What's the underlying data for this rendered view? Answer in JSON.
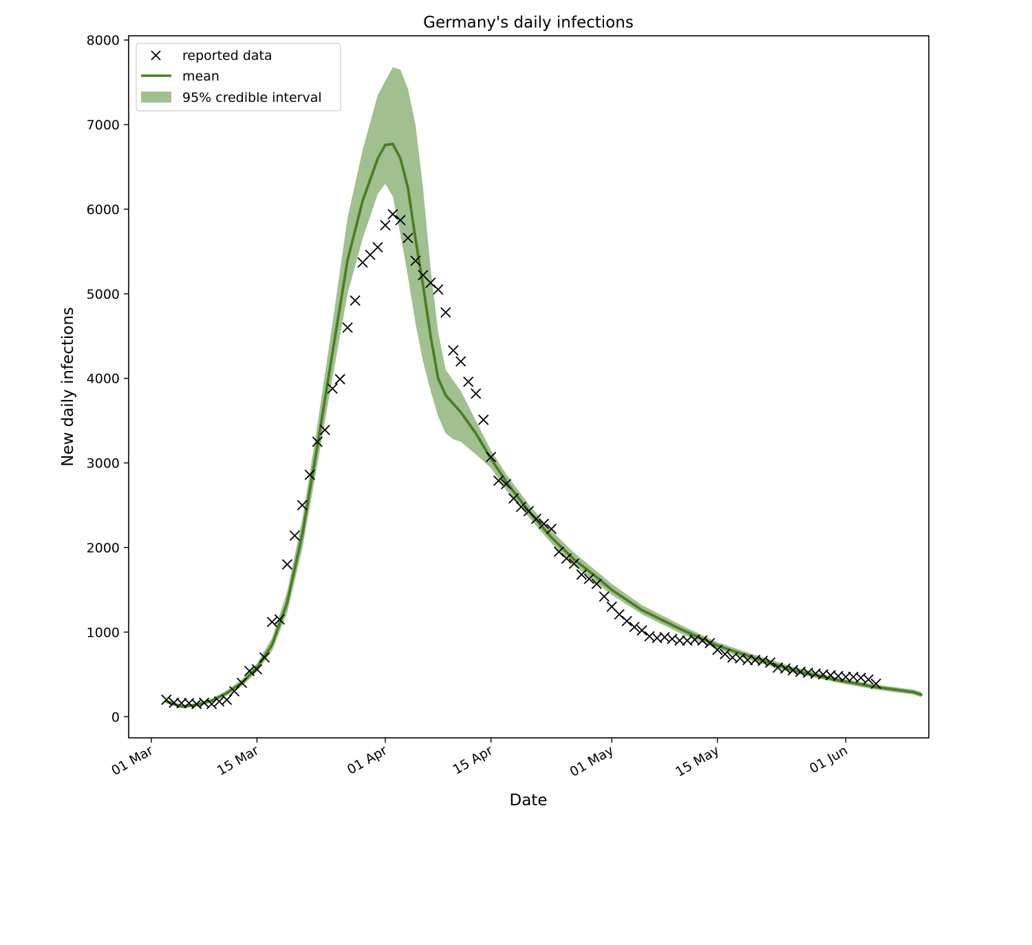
{
  "chart_data": {
    "type": "line",
    "title": "Germany's daily infections",
    "xlabel": "Date",
    "ylabel": "New daily infections",
    "xlim": [
      "2020-02-27",
      "2020-06-12"
    ],
    "ylim": [
      -250,
      8050
    ],
    "x_ticks": [
      {
        "date": "2020-03-01",
        "label": "01 Mar"
      },
      {
        "date": "2020-03-15",
        "label": "15 Mar"
      },
      {
        "date": "2020-04-01",
        "label": "01 Apr"
      },
      {
        "date": "2020-04-15",
        "label": "15 Apr"
      },
      {
        "date": "2020-05-01",
        "label": "01 May"
      },
      {
        "date": "2020-05-15",
        "label": "15 May"
      },
      {
        "date": "2020-06-01",
        "label": "01 Jun"
      }
    ],
    "y_ticks": [
      0,
      1000,
      2000,
      3000,
      4000,
      5000,
      6000,
      7000,
      8000
    ],
    "grid": false,
    "legend_position": "top-left",
    "colors": {
      "mean": "#4a7f22",
      "interval": "#a0c090",
      "reported": "#000000"
    },
    "legend": [
      {
        "label": "reported data",
        "marker": "x"
      },
      {
        "label": "mean",
        "marker": "line"
      },
      {
        "label": "95% credible interval",
        "marker": "patch"
      }
    ],
    "reported_data": [
      [
        "2020-03-03",
        200
      ],
      [
        "2020-03-04",
        165
      ],
      [
        "2020-03-05",
        160
      ],
      [
        "2020-03-06",
        160
      ],
      [
        "2020-03-07",
        150
      ],
      [
        "2020-03-08",
        165
      ],
      [
        "2020-03-09",
        150
      ],
      [
        "2020-03-10",
        180
      ],
      [
        "2020-03-11",
        200
      ],
      [
        "2020-03-12",
        300
      ],
      [
        "2020-03-13",
        400
      ],
      [
        "2020-03-14",
        540
      ],
      [
        "2020-03-15",
        560
      ],
      [
        "2020-03-16",
        700
      ],
      [
        "2020-03-17",
        1120
      ],
      [
        "2020-03-18",
        1150
      ],
      [
        "2020-03-19",
        1800
      ],
      [
        "2020-03-20",
        2140
      ],
      [
        "2020-03-21",
        2500
      ],
      [
        "2020-03-22",
        2860
      ],
      [
        "2020-03-23",
        3250
      ],
      [
        "2020-03-24",
        3390
      ],
      [
        "2020-03-25",
        3880
      ],
      [
        "2020-03-26",
        3990
      ],
      [
        "2020-03-27",
        4600
      ],
      [
        "2020-03-28",
        4920
      ],
      [
        "2020-03-29",
        5370
      ],
      [
        "2020-03-30",
        5460
      ],
      [
        "2020-03-31",
        5550
      ],
      [
        "2020-04-01",
        5810
      ],
      [
        "2020-04-02",
        5940
      ],
      [
        "2020-04-03",
        5870
      ],
      [
        "2020-04-04",
        5660
      ],
      [
        "2020-04-05",
        5390
      ],
      [
        "2020-04-06",
        5220
      ],
      [
        "2020-04-07",
        5130
      ],
      [
        "2020-04-08",
        5050
      ],
      [
        "2020-04-09",
        4780
      ],
      [
        "2020-04-10",
        4330
      ],
      [
        "2020-04-11",
        4200
      ],
      [
        "2020-04-12",
        3960
      ],
      [
        "2020-04-13",
        3820
      ],
      [
        "2020-04-14",
        3510
      ],
      [
        "2020-04-15",
        3070
      ],
      [
        "2020-04-16",
        2790
      ],
      [
        "2020-04-17",
        2750
      ],
      [
        "2020-04-18",
        2580
      ],
      [
        "2020-04-19",
        2480
      ],
      [
        "2020-04-20",
        2430
      ],
      [
        "2020-04-21",
        2340
      ],
      [
        "2020-04-22",
        2280
      ],
      [
        "2020-04-23",
        2220
      ],
      [
        "2020-04-24",
        1950
      ],
      [
        "2020-04-25",
        1870
      ],
      [
        "2020-04-26",
        1810
      ],
      [
        "2020-04-27",
        1680
      ],
      [
        "2020-04-28",
        1630
      ],
      [
        "2020-04-29",
        1570
      ],
      [
        "2020-04-30",
        1420
      ],
      [
        "2020-05-01",
        1300
      ],
      [
        "2020-05-02",
        1210
      ],
      [
        "2020-05-03",
        1130
      ],
      [
        "2020-05-04",
        1060
      ],
      [
        "2020-05-05",
        1020
      ],
      [
        "2020-05-06",
        950
      ],
      [
        "2020-05-07",
        930
      ],
      [
        "2020-05-08",
        940
      ],
      [
        "2020-05-09",
        920
      ],
      [
        "2020-05-10",
        900
      ],
      [
        "2020-05-11",
        900
      ],
      [
        "2020-05-12",
        910
      ],
      [
        "2020-05-13",
        900
      ],
      [
        "2020-05-14",
        870
      ],
      [
        "2020-05-15",
        790
      ],
      [
        "2020-05-16",
        740
      ],
      [
        "2020-05-17",
        700
      ],
      [
        "2020-05-18",
        690
      ],
      [
        "2020-05-19",
        670
      ],
      [
        "2020-05-20",
        670
      ],
      [
        "2020-05-21",
        660
      ],
      [
        "2020-05-22",
        640
      ],
      [
        "2020-05-23",
        580
      ],
      [
        "2020-05-24",
        570
      ],
      [
        "2020-05-25",
        550
      ],
      [
        "2020-05-26",
        530
      ],
      [
        "2020-05-27",
        520
      ],
      [
        "2020-05-28",
        510
      ],
      [
        "2020-05-29",
        500
      ],
      [
        "2020-05-30",
        490
      ],
      [
        "2020-05-31",
        480
      ],
      [
        "2020-06-01",
        470
      ],
      [
        "2020-06-02",
        470
      ],
      [
        "2020-06-03",
        460
      ],
      [
        "2020-06-04",
        440
      ],
      [
        "2020-06-05",
        390
      ]
    ],
    "mean": [
      [
        "2020-03-03",
        180
      ],
      [
        "2020-03-05",
        120
      ],
      [
        "2020-03-07",
        140
      ],
      [
        "2020-03-09",
        190
      ],
      [
        "2020-03-11",
        280
      ],
      [
        "2020-03-13",
        400
      ],
      [
        "2020-03-15",
        580
      ],
      [
        "2020-03-17",
        850
      ],
      [
        "2020-03-19",
        1350
      ],
      [
        "2020-03-21",
        2150
      ],
      [
        "2020-03-23",
        3200
      ],
      [
        "2020-03-25",
        4300
      ],
      [
        "2020-03-27",
        5400
      ],
      [
        "2020-03-29",
        6100
      ],
      [
        "2020-03-31",
        6600
      ],
      [
        "2020-04-01",
        6760
      ],
      [
        "2020-04-02",
        6770
      ],
      [
        "2020-04-03",
        6600
      ],
      [
        "2020-04-04",
        6250
      ],
      [
        "2020-04-05",
        5650
      ],
      [
        "2020-04-06",
        5100
      ],
      [
        "2020-04-07",
        4500
      ],
      [
        "2020-04-08",
        4000
      ],
      [
        "2020-04-09",
        3800
      ],
      [
        "2020-04-11",
        3600
      ],
      [
        "2020-04-13",
        3350
      ],
      [
        "2020-04-15",
        3050
      ],
      [
        "2020-04-17",
        2780
      ],
      [
        "2020-04-20",
        2430
      ],
      [
        "2020-04-23",
        2120
      ],
      [
        "2020-04-26",
        1860
      ],
      [
        "2020-04-29",
        1650
      ],
      [
        "2020-05-01",
        1500
      ],
      [
        "2020-05-05",
        1260
      ],
      [
        "2020-05-10",
        1040
      ],
      [
        "2020-05-15",
        840
      ],
      [
        "2020-05-20",
        690
      ],
      [
        "2020-05-25",
        550
      ],
      [
        "2020-05-31",
        430
      ],
      [
        "2020-06-05",
        350
      ],
      [
        "2020-06-10",
        290
      ],
      [
        "2020-06-11",
        260
      ]
    ],
    "interval_upper": [
      [
        "2020-03-03",
        200
      ],
      [
        "2020-03-05",
        140
      ],
      [
        "2020-03-07",
        160
      ],
      [
        "2020-03-09",
        210
      ],
      [
        "2020-03-11",
        310
      ],
      [
        "2020-03-13",
        440
      ],
      [
        "2020-03-15",
        630
      ],
      [
        "2020-03-17",
        930
      ],
      [
        "2020-03-19",
        1480
      ],
      [
        "2020-03-21",
        2330
      ],
      [
        "2020-03-23",
        3450
      ],
      [
        "2020-03-25",
        4650
      ],
      [
        "2020-03-27",
        5900
      ],
      [
        "2020-03-29",
        6700
      ],
      [
        "2020-03-31",
        7350
      ],
      [
        "2020-04-02",
        7680
      ],
      [
        "2020-04-03",
        7650
      ],
      [
        "2020-04-04",
        7420
      ],
      [
        "2020-04-05",
        7000
      ],
      [
        "2020-04-06",
        6250
      ],
      [
        "2020-04-07",
        5300
      ],
      [
        "2020-04-08",
        4550
      ],
      [
        "2020-04-09",
        4100
      ],
      [
        "2020-04-11",
        3850
      ],
      [
        "2020-04-13",
        3500
      ],
      [
        "2020-04-15",
        3150
      ],
      [
        "2020-04-17",
        2870
      ],
      [
        "2020-04-20",
        2510
      ],
      [
        "2020-04-23",
        2200
      ],
      [
        "2020-04-26",
        1940
      ],
      [
        "2020-04-29",
        1720
      ],
      [
        "2020-05-01",
        1570
      ],
      [
        "2020-05-05",
        1320
      ],
      [
        "2020-05-10",
        1090
      ],
      [
        "2020-05-15",
        880
      ],
      [
        "2020-05-20",
        730
      ],
      [
        "2020-05-25",
        590
      ],
      [
        "2020-05-31",
        460
      ],
      [
        "2020-06-05",
        380
      ],
      [
        "2020-06-10",
        320
      ],
      [
        "2020-06-11",
        290
      ]
    ],
    "interval_lower": [
      [
        "2020-03-03",
        160
      ],
      [
        "2020-03-05",
        100
      ],
      [
        "2020-03-07",
        120
      ],
      [
        "2020-03-09",
        170
      ],
      [
        "2020-03-11",
        250
      ],
      [
        "2020-03-13",
        360
      ],
      [
        "2020-03-15",
        530
      ],
      [
        "2020-03-17",
        780
      ],
      [
        "2020-03-19",
        1230
      ],
      [
        "2020-03-21",
        1980
      ],
      [
        "2020-03-23",
        2980
      ],
      [
        "2020-03-25",
        4000
      ],
      [
        "2020-03-27",
        5000
      ],
      [
        "2020-03-29",
        5650
      ],
      [
        "2020-03-31",
        6180
      ],
      [
        "2020-04-01",
        6300
      ],
      [
        "2020-04-02",
        6150
      ],
      [
        "2020-04-03",
        5700
      ],
      [
        "2020-04-04",
        5200
      ],
      [
        "2020-04-05",
        4650
      ],
      [
        "2020-04-06",
        4200
      ],
      [
        "2020-04-07",
        3850
      ],
      [
        "2020-04-08",
        3550
      ],
      [
        "2020-04-09",
        3350
      ],
      [
        "2020-04-10",
        3280
      ],
      [
        "2020-04-11",
        3250
      ],
      [
        "2020-04-13",
        3100
      ],
      [
        "2020-04-15",
        2940
      ],
      [
        "2020-04-17",
        2680
      ],
      [
        "2020-04-20",
        2360
      ],
      [
        "2020-04-23",
        2050
      ],
      [
        "2020-04-26",
        1790
      ],
      [
        "2020-04-29",
        1580
      ],
      [
        "2020-05-01",
        1440
      ],
      [
        "2020-05-05",
        1210
      ],
      [
        "2020-05-10",
        990
      ],
      [
        "2020-05-15",
        800
      ],
      [
        "2020-05-20",
        650
      ],
      [
        "2020-05-25",
        520
      ],
      [
        "2020-05-31",
        400
      ],
      [
        "2020-06-05",
        320
      ],
      [
        "2020-06-10",
        260
      ],
      [
        "2020-06-11",
        230
      ]
    ]
  }
}
